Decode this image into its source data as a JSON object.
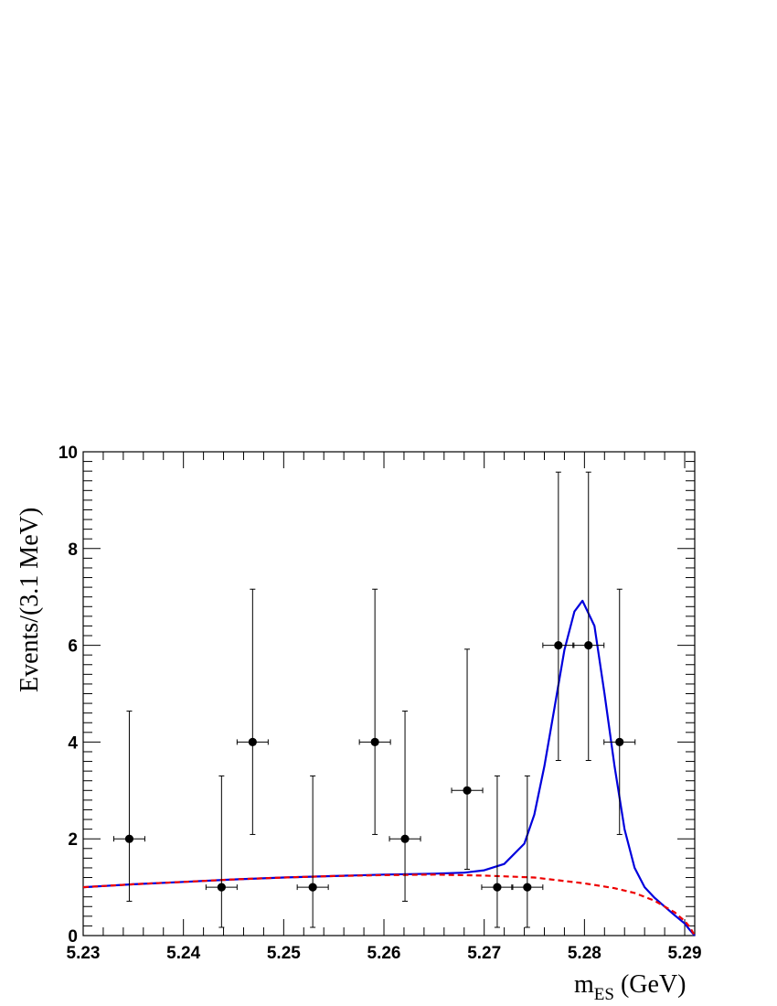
{
  "chart_data": {
    "type": "scatter",
    "xlabel": "m",
    "xlabel_sub": "ES",
    "xlabel_unit": " (GeV)",
    "ylabel": "Events/(3.1 MeV)",
    "xlim": [
      5.23,
      5.291
    ],
    "ylim": [
      0,
      10
    ],
    "x_ticks": [
      5.23,
      5.24,
      5.25,
      5.26,
      5.27,
      5.28,
      5.29
    ],
    "x_tick_labels": [
      "5.23",
      "5.24",
      "5.25",
      "5.26",
      "5.27",
      "5.28",
      "5.29"
    ],
    "y_ticks": [
      0,
      2,
      4,
      6,
      8,
      10
    ],
    "y_tick_labels": [
      "0",
      "2",
      "4",
      "6",
      "8",
      "10"
    ],
    "grid": false,
    "legend": "none",
    "data_points": {
      "name": "",
      "color": "#000000",
      "x": [
        5.2346,
        5.2438,
        5.2469,
        5.2529,
        5.2591,
        5.2621,
        5.2683,
        5.2713,
        5.2743,
        5.2774,
        5.2804,
        5.2835
      ],
      "y": [
        2,
        1,
        4,
        1,
        4,
        2,
        3,
        1,
        1,
        6,
        6,
        4
      ],
      "x_err": 0.00155,
      "y_err_low": [
        1.29,
        0.83,
        1.91,
        0.83,
        1.91,
        1.29,
        1.63,
        0.83,
        0.83,
        2.38,
        2.38,
        1.91
      ],
      "y_err_high": [
        2.64,
        2.3,
        3.16,
        2.3,
        3.16,
        2.64,
        2.92,
        2.3,
        2.3,
        3.58,
        3.58,
        3.16
      ]
    },
    "curves": [
      {
        "name": "",
        "color": "#0000dd",
        "style": "solid",
        "x": [
          5.23,
          5.235,
          5.24,
          5.245,
          5.25,
          5.255,
          5.26,
          5.265,
          5.268,
          5.27,
          5.272,
          5.274,
          5.275,
          5.276,
          5.277,
          5.278,
          5.279,
          5.2798,
          5.281,
          5.282,
          5.283,
          5.284,
          5.285,
          5.286,
          5.287,
          5.288,
          5.289,
          5.29,
          5.2905,
          5.291
        ],
        "y": [
          1.0,
          1.06,
          1.11,
          1.16,
          1.2,
          1.23,
          1.26,
          1.28,
          1.3,
          1.35,
          1.48,
          1.9,
          2.5,
          3.5,
          4.7,
          5.9,
          6.7,
          6.92,
          6.4,
          5.0,
          3.5,
          2.2,
          1.4,
          1.0,
          0.78,
          0.6,
          0.42,
          0.25,
          0.12,
          0.0
        ]
      },
      {
        "name": "",
        "color": "#ee0000",
        "style": "dashed",
        "x": [
          5.23,
          5.235,
          5.24,
          5.245,
          5.25,
          5.255,
          5.26,
          5.265,
          5.27,
          5.275,
          5.28,
          5.283,
          5.285,
          5.287,
          5.289,
          5.29,
          5.2905,
          5.291
        ],
        "y": [
          1.0,
          1.06,
          1.11,
          1.16,
          1.2,
          1.23,
          1.25,
          1.26,
          1.24,
          1.2,
          1.08,
          0.98,
          0.88,
          0.72,
          0.48,
          0.3,
          0.18,
          0.0
        ]
      }
    ]
  }
}
